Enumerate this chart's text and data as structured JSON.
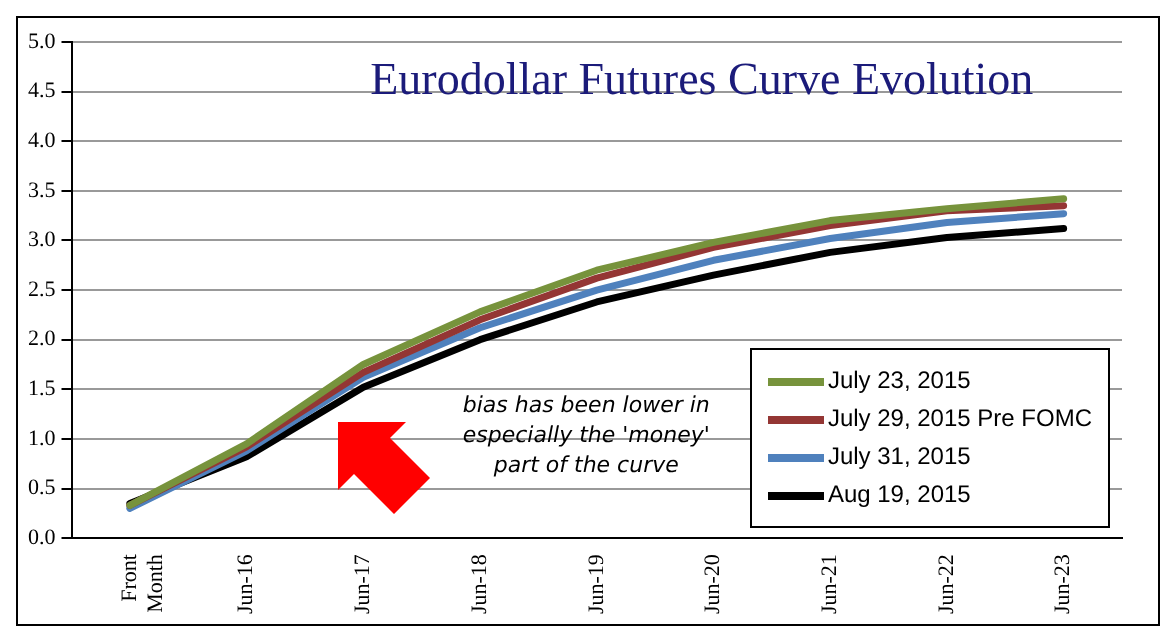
{
  "chart_data": {
    "type": "line",
    "title": "Eurodollar Futures Curve Evolution",
    "categories": [
      "Front Month",
      "Jun-16",
      "Jun-17",
      "Jun-18",
      "Jun-19",
      "Jun-20",
      "Jun-21",
      "Jun-22",
      "Jun-23"
    ],
    "series": [
      {
        "name": "July 23, 2015",
        "color": "#77933c",
        "values": [
          0.33,
          0.95,
          1.75,
          2.28,
          2.7,
          2.98,
          3.2,
          3.32,
          3.42
        ]
      },
      {
        "name": "July 29, 2015 Pre FOMC",
        "color": "#943634",
        "values": [
          0.33,
          0.92,
          1.67,
          2.2,
          2.62,
          2.93,
          3.15,
          3.3,
          3.35
        ]
      },
      {
        "name": "July 31, 2015",
        "color": "#4f81bd",
        "values": [
          0.3,
          0.88,
          1.62,
          2.12,
          2.5,
          2.8,
          3.02,
          3.18,
          3.27
        ]
      },
      {
        "name": "Aug 19, 2015",
        "color": "#000000",
        "values": [
          0.35,
          0.82,
          1.52,
          2.0,
          2.38,
          2.65,
          2.88,
          3.03,
          3.12
        ]
      }
    ],
    "ylim": [
      0,
      5
    ],
    "yticks": [
      {
        "value": 0,
        "label": "0.0"
      },
      {
        "value": 0.5,
        "label": "0.5"
      },
      {
        "value": 1,
        "label": "1.0"
      },
      {
        "value": 1.5,
        "label": "1.5"
      },
      {
        "value": 2,
        "label": "2.0"
      },
      {
        "value": 2.5,
        "label": "2.5"
      },
      {
        "value": 3,
        "label": "3.0"
      },
      {
        "value": 3.5,
        "label": "3.5"
      },
      {
        "value": 4,
        "label": "4.0"
      },
      {
        "value": 4.5,
        "label": "4.5"
      },
      {
        "value": 5,
        "label": "5.0"
      }
    ],
    "grid": "y",
    "legend": "bottom right",
    "marker": "none",
    "line_style": "solid",
    "annotations": [
      "bias has been lower in especially the 'money' part of the curve"
    ]
  }
}
